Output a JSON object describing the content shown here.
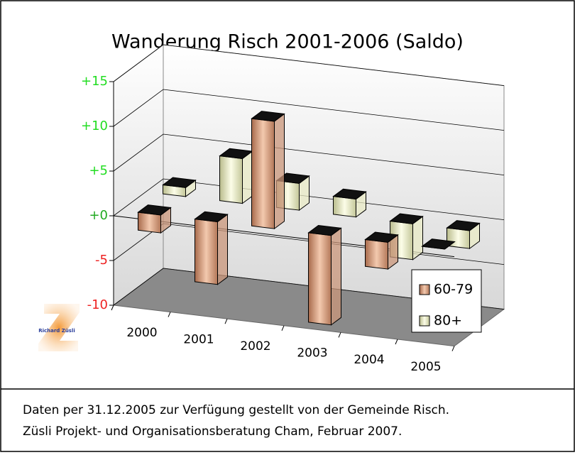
{
  "chart_data": {
    "type": "bar3d",
    "title": "Wanderung Risch 2001-2006 (Saldo)",
    "categories": [
      "2000",
      "2001",
      "2002",
      "2003",
      "2004",
      "2005"
    ],
    "series": [
      {
        "name": "60-79",
        "color": "#c9957a",
        "values": [
          -2,
          -7,
          12,
          -10,
          -3,
          0
        ]
      },
      {
        "name": "80+",
        "color": "#e9ebc6",
        "values": [
          1,
          5,
          3,
          2,
          -4,
          -2
        ]
      }
    ],
    "ylim": [
      -10,
      15
    ],
    "yticks": [
      {
        "value": 15,
        "label": "+15"
      },
      {
        "value": 10,
        "label": "+10"
      },
      {
        "value": 5,
        "label": "+5"
      },
      {
        "value": 0,
        "label": "+0"
      },
      -5,
      -10
    ],
    "grid": true,
    "legend": "right",
    "logo": "Richard Züsli",
    "notes": [
      "Daten per 31.12.2005 zur Verfügung gestellt von der Gemeinde Risch.",
      "Züsli Projekt- und Organisationsberatung Cham, Februar 2007."
    ]
  }
}
